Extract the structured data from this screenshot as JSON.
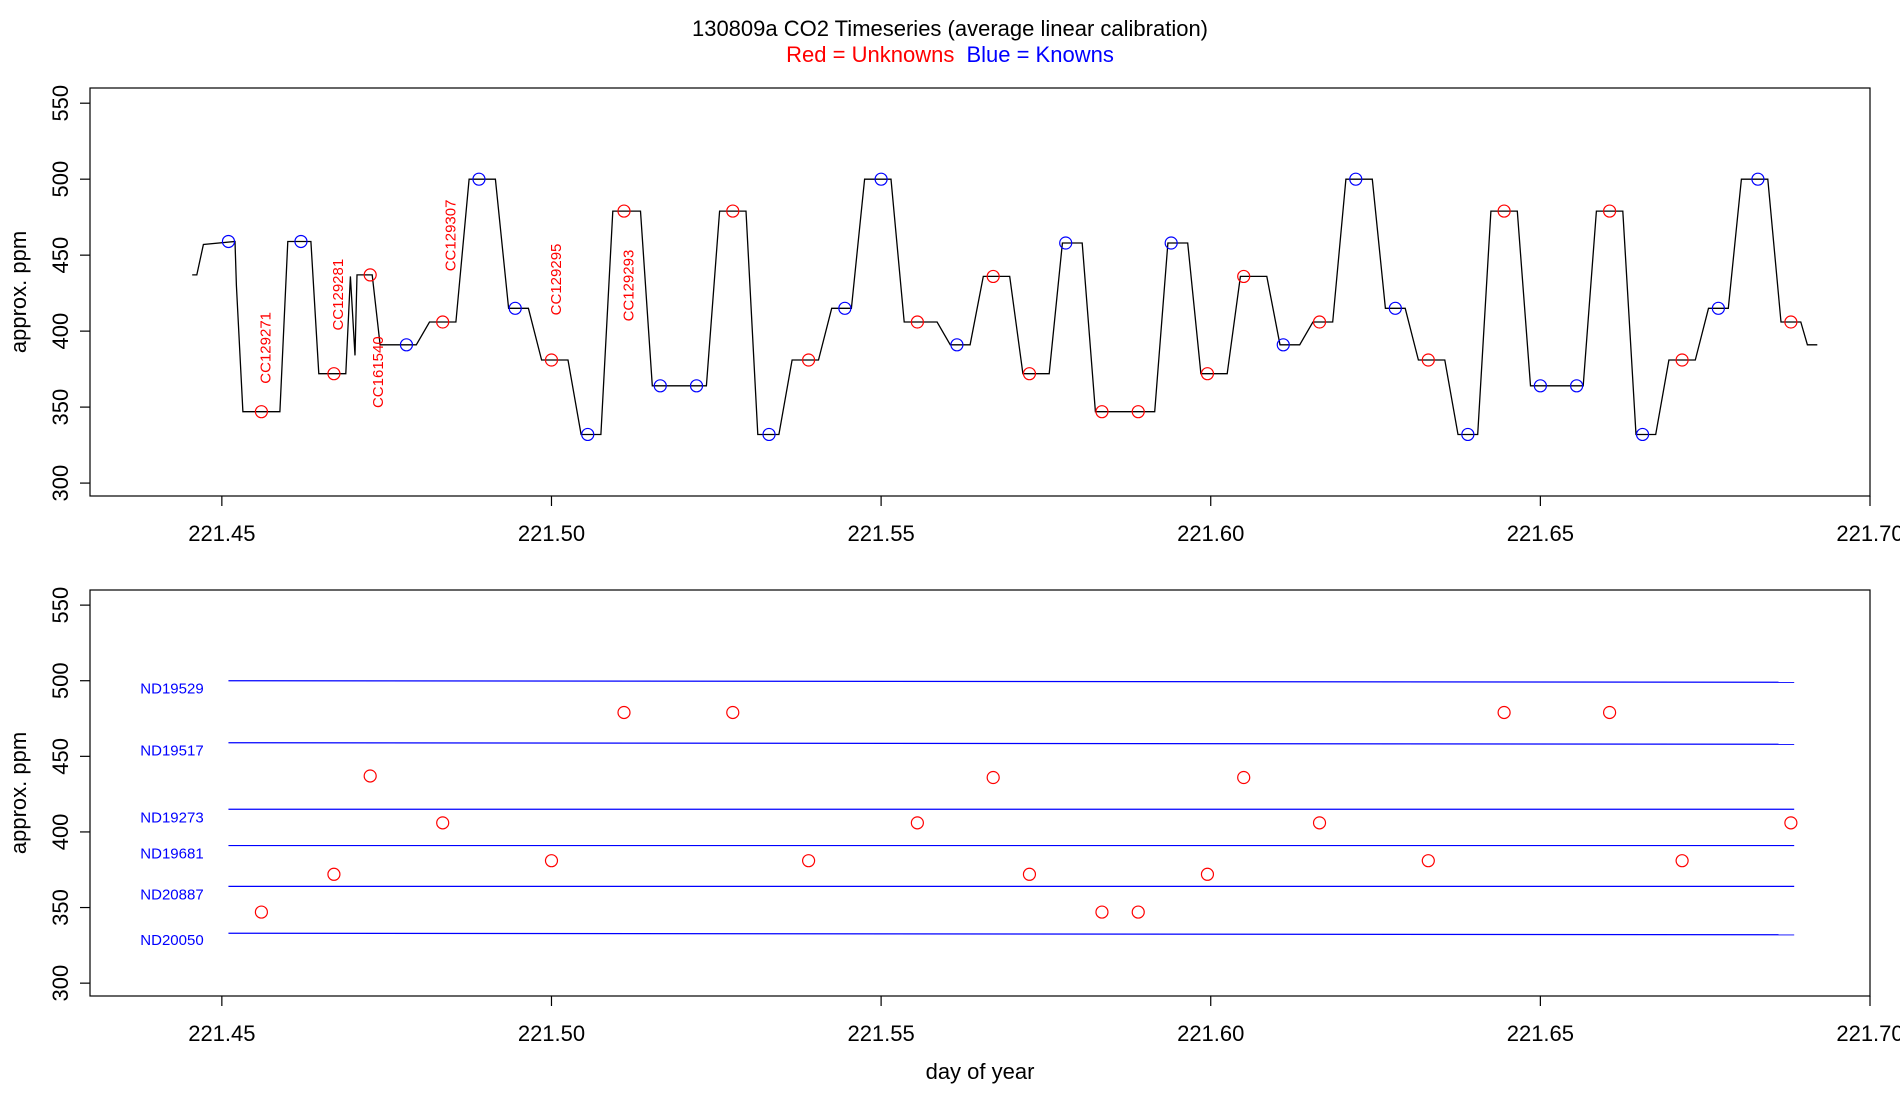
{
  "title": {
    "main": "130809a   CO2 Timeseries (average linear calibration)",
    "legend_red": "Red = Unknowns",
    "legend_blue": "Blue = Knowns",
    "red_color": "#ff0000",
    "blue_color": "#0000ff"
  },
  "chart_data": [
    {
      "type": "line",
      "name": "timeseries",
      "ylabel": "approx. ppm",
      "xlabel": "",
      "xlim": [
        221.43,
        221.7
      ],
      "ylim": [
        300,
        550
      ],
      "xticks": [
        "221.45",
        "221.50",
        "221.55",
        "221.60",
        "221.65",
        "221.70"
      ],
      "yticks": [
        "300",
        "350",
        "400",
        "450",
        "500",
        "550"
      ],
      "trace": [
        [
          221.4455,
          437
        ],
        [
          221.4462,
          437
        ],
        [
          221.4472,
          457
        ],
        [
          221.452,
          459
        ],
        [
          221.4522,
          430
        ],
        [
          221.4532,
          347
        ],
        [
          221.4588,
          347
        ],
        [
          221.46,
          459
        ],
        [
          221.4635,
          459
        ],
        [
          221.4647,
          372
        ],
        [
          221.4688,
          372
        ],
        [
          221.4695,
          436
        ],
        [
          221.4702,
          384
        ],
        [
          221.4705,
          437
        ],
        [
          221.4728,
          437
        ],
        [
          221.474,
          391
        ],
        [
          221.4795,
          391
        ],
        [
          221.4815,
          406
        ],
        [
          221.4855,
          406
        ],
        [
          221.4875,
          500
        ],
        [
          221.4915,
          500
        ],
        [
          221.4935,
          415
        ],
        [
          221.4965,
          415
        ],
        [
          221.4985,
          381
        ],
        [
          221.5025,
          381
        ],
        [
          221.5045,
          332
        ],
        [
          221.5075,
          332
        ],
        [
          221.5093,
          479
        ],
        [
          221.5135,
          479
        ],
        [
          221.5153,
          364
        ],
        [
          221.5235,
          364
        ],
        [
          221.5255,
          479
        ],
        [
          221.5295,
          479
        ],
        [
          221.5313,
          332
        ],
        [
          221.5345,
          332
        ],
        [
          221.5365,
          381
        ],
        [
          221.5405,
          381
        ],
        [
          221.5425,
          415
        ],
        [
          221.5455,
          415
        ],
        [
          221.5475,
          500
        ],
        [
          221.5515,
          500
        ],
        [
          221.5535,
          406
        ],
        [
          221.5585,
          406
        ],
        [
          221.5605,
          391
        ],
        [
          221.5635,
          391
        ],
        [
          221.5655,
          436
        ],
        [
          221.5695,
          436
        ],
        [
          221.5715,
          372
        ],
        [
          221.5755,
          372
        ],
        [
          221.5775,
          458
        ],
        [
          221.5805,
          458
        ],
        [
          221.5825,
          347
        ],
        [
          221.5915,
          347
        ],
        [
          221.5935,
          458
        ],
        [
          221.5965,
          458
        ],
        [
          221.5985,
          372
        ],
        [
          221.6025,
          372
        ],
        [
          221.6045,
          436
        ],
        [
          221.6085,
          436
        ],
        [
          221.6105,
          391
        ],
        [
          221.6135,
          391
        ],
        [
          221.6155,
          406
        ],
        [
          221.6185,
          406
        ],
        [
          221.6205,
          500
        ],
        [
          221.6245,
          500
        ],
        [
          221.6265,
          415
        ],
        [
          221.6295,
          415
        ],
        [
          221.6315,
          381
        ],
        [
          221.6355,
          381
        ],
        [
          221.6375,
          332
        ],
        [
          221.6405,
          332
        ],
        [
          221.6425,
          479
        ],
        [
          221.6465,
          479
        ],
        [
          221.6485,
          364
        ],
        [
          221.6565,
          364
        ],
        [
          221.6585,
          479
        ],
        [
          221.6625,
          479
        ],
        [
          221.6645,
          332
        ],
        [
          221.6675,
          332
        ],
        [
          221.6695,
          381
        ],
        [
          221.6735,
          381
        ],
        [
          221.6755,
          415
        ],
        [
          221.6785,
          415
        ],
        [
          221.6805,
          500
        ],
        [
          221.6845,
          500
        ],
        [
          221.6865,
          406
        ],
        [
          221.6895,
          406
        ],
        [
          221.6905,
          391
        ],
        [
          221.692,
          391
        ]
      ],
      "knowns": [
        [
          221.451,
          459
        ],
        [
          221.462,
          459
        ],
        [
          221.478,
          391
        ],
        [
          221.489,
          500
        ],
        [
          221.4945,
          415
        ],
        [
          221.5055,
          332
        ],
        [
          221.5165,
          364
        ],
        [
          221.522,
          364
        ],
        [
          221.533,
          332
        ],
        [
          221.5445,
          415
        ],
        [
          221.55,
          500
        ],
        [
          221.5615,
          391
        ],
        [
          221.578,
          458
        ],
        [
          221.594,
          458
        ],
        [
          221.611,
          391
        ],
        [
          221.622,
          500
        ],
        [
          221.628,
          415
        ],
        [
          221.639,
          332
        ],
        [
          221.65,
          364
        ],
        [
          221.6555,
          364
        ],
        [
          221.6655,
          332
        ],
        [
          221.677,
          415
        ],
        [
          221.683,
          500
        ]
      ],
      "unknowns": [
        [
          221.456,
          347
        ],
        [
          221.467,
          372
        ],
        [
          221.4725,
          437
        ],
        [
          221.4835,
          406
        ],
        [
          221.5,
          381
        ],
        [
          221.511,
          479
        ],
        [
          221.5275,
          479
        ],
        [
          221.539,
          381
        ],
        [
          221.5555,
          406
        ],
        [
          221.567,
          436
        ],
        [
          221.5725,
          372
        ],
        [
          221.5835,
          347
        ],
        [
          221.589,
          347
        ],
        [
          221.5995,
          372
        ],
        [
          221.605,
          436
        ],
        [
          221.6165,
          406
        ],
        [
          221.633,
          381
        ],
        [
          221.6445,
          479
        ],
        [
          221.6605,
          479
        ],
        [
          221.6715,
          381
        ],
        [
          221.688,
          406
        ]
      ],
      "annotations": [
        {
          "text": "CC129271",
          "x": 221.4565,
          "y": 389
        },
        {
          "text": "CC129281",
          "x": 221.4675,
          "y": 424
        },
        {
          "text": "CC161540",
          "x": 221.4735,
          "y": 373
        },
        {
          "text": "CC129307",
          "x": 221.4845,
          "y": 463
        },
        {
          "text": "CC129295",
          "x": 221.5005,
          "y": 434
        },
        {
          "text": "CC129293",
          "x": 221.5115,
          "y": 430
        }
      ]
    },
    {
      "type": "scatter",
      "name": "standards",
      "ylabel": "approx. ppm",
      "xlabel": "day of year",
      "xlim": [
        221.43,
        221.7
      ],
      "ylim": [
        300,
        550
      ],
      "xticks": [
        "221.45",
        "221.50",
        "221.55",
        "221.60",
        "221.65",
        "221.70"
      ],
      "yticks": [
        "300",
        "350",
        "400",
        "450",
        "500",
        "550"
      ],
      "standards": [
        {
          "label": "ND19529",
          "y": [
            500,
            499
          ]
        },
        {
          "label": "ND19517",
          "y": [
            459,
            458
          ]
        },
        {
          "label": "ND19273",
          "y": [
            415,
            415
          ]
        },
        {
          "label": "ND19681",
          "y": [
            391,
            391
          ]
        },
        {
          "label": "ND20887",
          "y": [
            364,
            364
          ]
        },
        {
          "label": "ND20050",
          "y": [
            333,
            332
          ]
        }
      ],
      "standard_xrange": [
        221.451,
        221.6885
      ],
      "unknowns": [
        [
          221.456,
          347
        ],
        [
          221.467,
          372
        ],
        [
          221.4725,
          437
        ],
        [
          221.4835,
          406
        ],
        [
          221.5,
          381
        ],
        [
          221.511,
          479
        ],
        [
          221.5275,
          479
        ],
        [
          221.539,
          381
        ],
        [
          221.5555,
          406
        ],
        [
          221.567,
          436
        ],
        [
          221.5725,
          372
        ],
        [
          221.5835,
          347
        ],
        [
          221.589,
          347
        ],
        [
          221.5995,
          372
        ],
        [
          221.605,
          436
        ],
        [
          221.6165,
          406
        ],
        [
          221.633,
          381
        ],
        [
          221.6445,
          479
        ],
        [
          221.6605,
          479
        ],
        [
          221.6715,
          381
        ],
        [
          221.688,
          406
        ]
      ]
    }
  ]
}
